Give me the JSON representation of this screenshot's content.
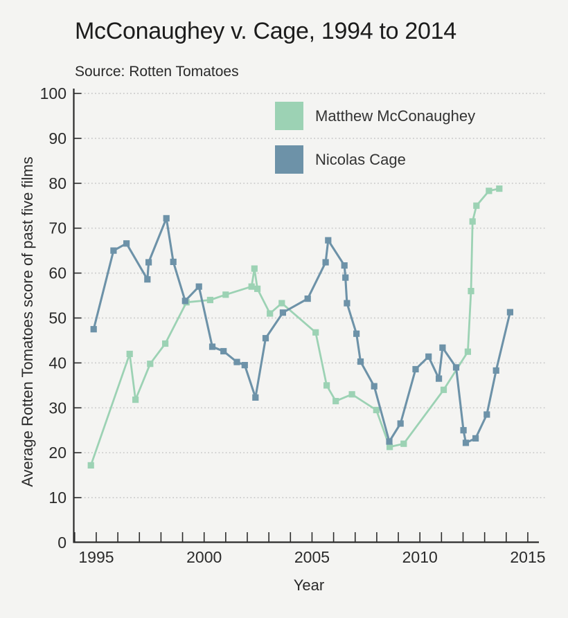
{
  "title": "McConaughey v. Cage, 1994 to 2014",
  "source": "Source: Rotten Tomatoes",
  "colors": {
    "background": "#f4f4f2",
    "axis": "#2b2b2b",
    "grid": "#c9c9c9",
    "text": "#2a2a2a",
    "mcconaughey": "#9cd2b4",
    "cage": "#6d92a8"
  },
  "chart_data": {
    "type": "line",
    "title": "McConaughey v. Cage, 1994 to 2014",
    "source": "Source: Rotten Tomatoes",
    "xlabel": "Year",
    "ylabel": "Average Rotten Tomatoes score of past five films",
    "xlim": [
      1994,
      2015.5
    ],
    "ylim": [
      0,
      100
    ],
    "y_ticks": [
      0,
      10,
      20,
      30,
      40,
      50,
      60,
      70,
      80,
      90,
      100
    ],
    "x_ticks_labeled": [
      1995,
      2000,
      2005,
      2010,
      2015
    ],
    "x_ticks_all": [
      1994,
      1995,
      1996,
      1997,
      1998,
      1999,
      2000,
      2001,
      2002,
      2003,
      2004,
      2005,
      2006,
      2007,
      2008,
      2009,
      2010,
      2011,
      2012,
      2013,
      2014,
      2015
    ],
    "grid": "horizontal-dotted",
    "legend_position": "top-inside",
    "series": [
      {
        "name": "Matthew McConaughey",
        "color": "#9cd2b4",
        "points": [
          [
            1994.75,
            17.2
          ],
          [
            1996.55,
            42.0
          ],
          [
            1996.82,
            31.8
          ],
          [
            1997.5,
            39.8
          ],
          [
            1998.2,
            44.3
          ],
          [
            1999.18,
            53.5
          ],
          [
            2000.28,
            54.0
          ],
          [
            2001.0,
            55.2
          ],
          [
            2002.2,
            57.0
          ],
          [
            2002.33,
            61.0
          ],
          [
            2002.47,
            56.5
          ],
          [
            2003.05,
            51.0
          ],
          [
            2003.6,
            53.3
          ],
          [
            2005.17,
            46.8
          ],
          [
            2005.68,
            35.0
          ],
          [
            2006.1,
            31.5
          ],
          [
            2006.85,
            33.0
          ],
          [
            2007.98,
            29.5
          ],
          [
            2008.6,
            21.3
          ],
          [
            2009.25,
            22.0
          ],
          [
            2011.1,
            34.0
          ],
          [
            2012.22,
            42.5
          ],
          [
            2012.37,
            56.0
          ],
          [
            2012.44,
            71.5
          ],
          [
            2012.62,
            75.0
          ],
          [
            2013.2,
            78.3
          ],
          [
            2013.68,
            78.8
          ]
        ]
      },
      {
        "name": "Nicolas Cage",
        "color": "#6d92a8",
        "points": [
          [
            1994.88,
            47.5
          ],
          [
            1995.8,
            65.0
          ],
          [
            1996.4,
            66.6
          ],
          [
            1997.37,
            58.6
          ],
          [
            1997.43,
            62.4
          ],
          [
            1998.25,
            72.2
          ],
          [
            1998.57,
            62.5
          ],
          [
            1999.12,
            53.8
          ],
          [
            1999.76,
            57.0
          ],
          [
            2000.38,
            43.6
          ],
          [
            2000.9,
            42.6
          ],
          [
            2001.52,
            40.2
          ],
          [
            2001.88,
            39.5
          ],
          [
            2002.38,
            32.3
          ],
          [
            2002.85,
            45.5
          ],
          [
            2003.65,
            51.2
          ],
          [
            2004.8,
            54.3
          ],
          [
            2005.63,
            62.4
          ],
          [
            2005.75,
            67.3
          ],
          [
            2006.5,
            61.7
          ],
          [
            2006.55,
            59.0
          ],
          [
            2006.62,
            53.3
          ],
          [
            2007.06,
            46.5
          ],
          [
            2007.25,
            40.3
          ],
          [
            2007.88,
            34.8
          ],
          [
            2008.58,
            22.5
          ],
          [
            2009.1,
            26.5
          ],
          [
            2009.8,
            38.6
          ],
          [
            2010.4,
            41.4
          ],
          [
            2010.88,
            36.5
          ],
          [
            2011.05,
            43.4
          ],
          [
            2011.68,
            39.0
          ],
          [
            2012.02,
            25.0
          ],
          [
            2012.13,
            22.2
          ],
          [
            2012.58,
            23.2
          ],
          [
            2013.1,
            28.5
          ],
          [
            2013.53,
            38.3
          ],
          [
            2014.18,
            51.3
          ]
        ]
      }
    ]
  }
}
